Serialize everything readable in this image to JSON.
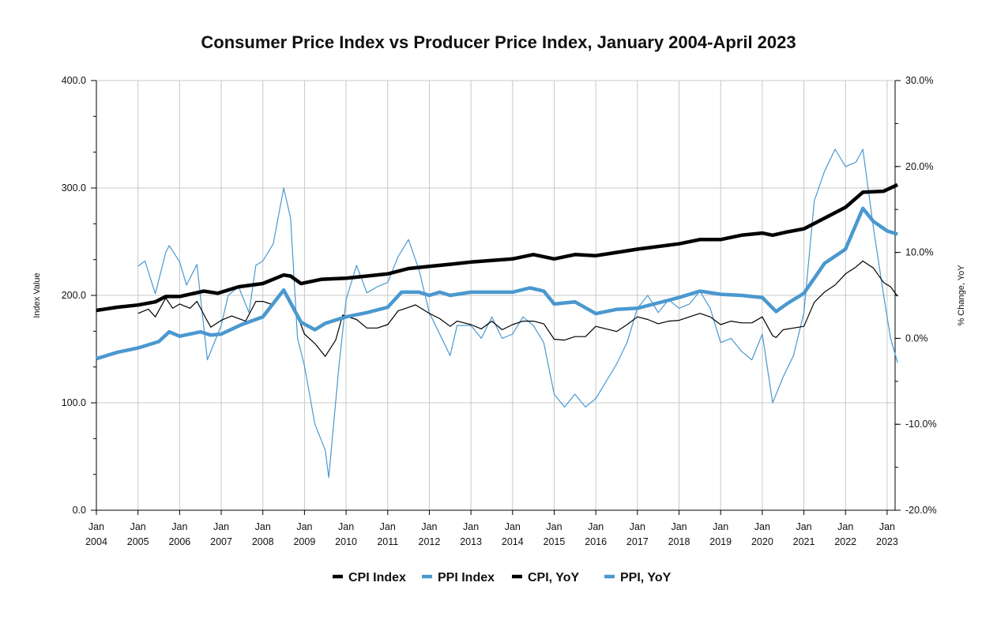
{
  "chart_data": {
    "type": "line",
    "title": "Consumer Price Index vs Producer Price Index, January 2004-April 2023",
    "ylabel": "Index Value",
    "y2label": "% Change, YoY",
    "ylim": [
      0,
      400
    ],
    "y2lim": [
      -20,
      30
    ],
    "yticks": [
      "0.0",
      "100.0",
      "200.0",
      "300.0",
      "400.0"
    ],
    "y2ticks": [
      "-20.0%",
      "-10.0%",
      "0.0%",
      "10.0%",
      "20.0%",
      "30.0%"
    ],
    "xticks": [
      [
        "Jan",
        "2004"
      ],
      [
        "Jan",
        "2005"
      ],
      [
        "Jan",
        "2006"
      ],
      [
        "Jan",
        "2007"
      ],
      [
        "Jan",
        "2008"
      ],
      [
        "Jan",
        "2009"
      ],
      [
        "Jan",
        "2010"
      ],
      [
        "Jan",
        "2011"
      ],
      [
        "Jan",
        "2012"
      ],
      [
        "Jan",
        "2013"
      ],
      [
        "Jan",
        "2014"
      ],
      [
        "Jan",
        "2015"
      ],
      [
        "Jan",
        "2016"
      ],
      [
        "Jan",
        "2017"
      ],
      [
        "Jan",
        "2018"
      ],
      [
        "Jan",
        "2019"
      ],
      [
        "Jan",
        "2020"
      ],
      [
        "Jan",
        "2021"
      ],
      [
        "Jan",
        "2022"
      ],
      [
        "Jan",
        "2023"
      ]
    ],
    "grid": true,
    "legend_position": "bottom",
    "series": [
      {
        "name": "CPI Index",
        "axis": "left",
        "color": "#000000",
        "style": "thick",
        "points": [
          [
            "2004-01",
            186
          ],
          [
            "2004-07",
            189
          ],
          [
            "2005-01",
            191
          ],
          [
            "2005-06",
            194
          ],
          [
            "2005-09",
            199
          ],
          [
            "2006-01",
            199
          ],
          [
            "2006-08",
            204
          ],
          [
            "2006-12",
            202
          ],
          [
            "2007-06",
            208
          ],
          [
            "2008-01",
            211
          ],
          [
            "2008-07",
            219
          ],
          [
            "2008-09",
            218
          ],
          [
            "2008-12",
            211
          ],
          [
            "2009-06",
            215
          ],
          [
            "2010-01",
            216
          ],
          [
            "2011-01",
            220
          ],
          [
            "2011-07",
            225
          ],
          [
            "2012-01",
            227
          ],
          [
            "2012-07",
            229
          ],
          [
            "2013-01",
            231
          ],
          [
            "2014-01",
            234
          ],
          [
            "2014-07",
            238
          ],
          [
            "2015-01",
            234
          ],
          [
            "2015-07",
            238
          ],
          [
            "2016-01",
            237
          ],
          [
            "2016-07",
            240
          ],
          [
            "2017-01",
            243
          ],
          [
            "2018-01",
            248
          ],
          [
            "2018-07",
            252
          ],
          [
            "2019-01",
            252
          ],
          [
            "2019-07",
            256
          ],
          [
            "2020-01",
            258
          ],
          [
            "2020-04",
            256
          ],
          [
            "2020-08",
            259
          ],
          [
            "2021-01",
            262
          ],
          [
            "2021-07",
            272
          ],
          [
            "2022-01",
            282
          ],
          [
            "2022-06",
            296
          ],
          [
            "2022-12",
            297
          ],
          [
            "2023-04",
            303
          ]
        ]
      },
      {
        "name": "PPI Index",
        "axis": "left",
        "color": "#4a98cf",
        "style": "thick",
        "points": [
          [
            "2004-01",
            141
          ],
          [
            "2004-07",
            147
          ],
          [
            "2005-01",
            151
          ],
          [
            "2005-07",
            157
          ],
          [
            "2005-10",
            166
          ],
          [
            "2006-01",
            162
          ],
          [
            "2006-07",
            166
          ],
          [
            "2006-10",
            163
          ],
          [
            "2007-01",
            164
          ],
          [
            "2007-07",
            173
          ],
          [
            "2008-01",
            180
          ],
          [
            "2008-07",
            205
          ],
          [
            "2008-12",
            175
          ],
          [
            "2009-04",
            168
          ],
          [
            "2009-07",
            174
          ],
          [
            "2010-01",
            180
          ],
          [
            "2010-07",
            184
          ],
          [
            "2011-01",
            189
          ],
          [
            "2011-05",
            203
          ],
          [
            "2011-10",
            203
          ],
          [
            "2012-01",
            200
          ],
          [
            "2012-04",
            203
          ],
          [
            "2012-07",
            200
          ],
          [
            "2013-01",
            203
          ],
          [
            "2013-07",
            203
          ],
          [
            "2014-01",
            203
          ],
          [
            "2014-06",
            207
          ],
          [
            "2014-10",
            204
          ],
          [
            "2015-01",
            192
          ],
          [
            "2015-07",
            194
          ],
          [
            "2016-01",
            183
          ],
          [
            "2016-07",
            187
          ],
          [
            "2017-01",
            188
          ],
          [
            "2017-07",
            193
          ],
          [
            "2018-01",
            198
          ],
          [
            "2018-07",
            204
          ],
          [
            "2019-01",
            201
          ],
          [
            "2019-07",
            200
          ],
          [
            "2020-01",
            198
          ],
          [
            "2020-05",
            185
          ],
          [
            "2020-08",
            192
          ],
          [
            "2021-01",
            202
          ],
          [
            "2021-07",
            230
          ],
          [
            "2022-01",
            243
          ],
          [
            "2022-06",
            281
          ],
          [
            "2022-09",
            269
          ],
          [
            "2023-01",
            260
          ],
          [
            "2023-04",
            257
          ]
        ]
      },
      {
        "name": "CPI, YoY",
        "axis": "right",
        "color": "#000000",
        "style": "thin",
        "points": [
          [
            "2005-01",
            2.9
          ],
          [
            "2005-04",
            3.4
          ],
          [
            "2005-06",
            2.5
          ],
          [
            "2005-09",
            4.7
          ],
          [
            "2005-11",
            3.5
          ],
          [
            "2006-01",
            4.0
          ],
          [
            "2006-04",
            3.5
          ],
          [
            "2006-06",
            4.3
          ],
          [
            "2006-09",
            2.0
          ],
          [
            "2006-10",
            1.3
          ],
          [
            "2007-01",
            2.1
          ],
          [
            "2007-04",
            2.6
          ],
          [
            "2007-08",
            2.0
          ],
          [
            "2007-11",
            4.3
          ],
          [
            "2008-01",
            4.3
          ],
          [
            "2008-04",
            3.9
          ],
          [
            "2008-07",
            5.6
          ],
          [
            "2008-10",
            3.7
          ],
          [
            "2009-01",
            0.5
          ],
          [
            "2009-04",
            -0.6
          ],
          [
            "2009-07",
            -2.1
          ],
          [
            "2009-10",
            -0.2
          ],
          [
            "2009-12",
            2.7
          ],
          [
            "2010-04",
            2.2
          ],
          [
            "2010-07",
            1.2
          ],
          [
            "2010-10",
            1.2
          ],
          [
            "2011-01",
            1.6
          ],
          [
            "2011-04",
            3.2
          ],
          [
            "2011-07",
            3.6
          ],
          [
            "2011-09",
            3.9
          ],
          [
            "2012-01",
            2.9
          ],
          [
            "2012-04",
            2.3
          ],
          [
            "2012-07",
            1.4
          ],
          [
            "2012-09",
            2.0
          ],
          [
            "2013-01",
            1.6
          ],
          [
            "2013-04",
            1.1
          ],
          [
            "2013-07",
            2.0
          ],
          [
            "2013-10",
            1.0
          ],
          [
            "2014-01",
            1.6
          ],
          [
            "2014-04",
            2.0
          ],
          [
            "2014-07",
            2.0
          ],
          [
            "2014-10",
            1.7
          ],
          [
            "2015-01",
            -0.1
          ],
          [
            "2015-04",
            -0.2
          ],
          [
            "2015-07",
            0.2
          ],
          [
            "2015-10",
            0.2
          ],
          [
            "2016-01",
            1.4
          ],
          [
            "2016-04",
            1.1
          ],
          [
            "2016-07",
            0.8
          ],
          [
            "2016-10",
            1.6
          ],
          [
            "2017-01",
            2.5
          ],
          [
            "2017-04",
            2.2
          ],
          [
            "2017-07",
            1.7
          ],
          [
            "2017-10",
            2.0
          ],
          [
            "2018-01",
            2.1
          ],
          [
            "2018-04",
            2.5
          ],
          [
            "2018-07",
            2.9
          ],
          [
            "2018-10",
            2.5
          ],
          [
            "2019-01",
            1.6
          ],
          [
            "2019-04",
            2.0
          ],
          [
            "2019-07",
            1.8
          ],
          [
            "2019-10",
            1.8
          ],
          [
            "2020-01",
            2.5
          ],
          [
            "2020-04",
            0.3
          ],
          [
            "2020-05",
            0.1
          ],
          [
            "2020-07",
            1.0
          ],
          [
            "2020-10",
            1.2
          ],
          [
            "2021-01",
            1.4
          ],
          [
            "2021-04",
            4.2
          ],
          [
            "2021-07",
            5.4
          ],
          [
            "2021-10",
            6.2
          ],
          [
            "2022-01",
            7.5
          ],
          [
            "2022-04",
            8.3
          ],
          [
            "2022-06",
            9.0
          ],
          [
            "2022-09",
            8.2
          ],
          [
            "2022-12",
            6.5
          ],
          [
            "2023-02",
            6.0
          ],
          [
            "2023-04",
            4.9
          ]
        ]
      },
      {
        "name": "PPI, YoY",
        "axis": "right",
        "color": "#4a98cf",
        "style": "thin",
        "points": [
          [
            "2005-01",
            8.4
          ],
          [
            "2005-03",
            9.0
          ],
          [
            "2005-06",
            5.2
          ],
          [
            "2005-09",
            10.0
          ],
          [
            "2005-10",
            10.8
          ],
          [
            "2006-01",
            8.9
          ],
          [
            "2006-03",
            6.2
          ],
          [
            "2006-06",
            8.6
          ],
          [
            "2006-09",
            -2.5
          ],
          [
            "2007-01",
            1.5
          ],
          [
            "2007-03",
            5.0
          ],
          [
            "2007-06",
            6.0
          ],
          [
            "2007-09",
            3.0
          ],
          [
            "2007-11",
            8.5
          ],
          [
            "2008-01",
            9.0
          ],
          [
            "2008-04",
            11.0
          ],
          [
            "2008-07",
            17.5
          ],
          [
            "2008-09",
            14.0
          ],
          [
            "2008-11",
            0.0
          ],
          [
            "2009-01",
            -3.2
          ],
          [
            "2009-04",
            -10.0
          ],
          [
            "2009-07",
            -13.0
          ],
          [
            "2009-08",
            -16.2
          ],
          [
            "2009-11",
            -3.0
          ],
          [
            "2010-01",
            4.5
          ],
          [
            "2010-04",
            8.5
          ],
          [
            "2010-07",
            5.3
          ],
          [
            "2010-10",
            6.0
          ],
          [
            "2011-01",
            6.5
          ],
          [
            "2011-04",
            9.5
          ],
          [
            "2011-07",
            11.5
          ],
          [
            "2011-10",
            8.0
          ],
          [
            "2012-01",
            3.0
          ],
          [
            "2012-04",
            0.5
          ],
          [
            "2012-07",
            -2.0
          ],
          [
            "2012-09",
            1.5
          ],
          [
            "2013-01",
            1.5
          ],
          [
            "2013-04",
            0.0
          ],
          [
            "2013-07",
            2.5
          ],
          [
            "2013-10",
            0.0
          ],
          [
            "2014-01",
            0.5
          ],
          [
            "2014-04",
            2.5
          ],
          [
            "2014-07",
            1.5
          ],
          [
            "2014-10",
            -0.5
          ],
          [
            "2015-01",
            -6.5
          ],
          [
            "2015-04",
            -8.0
          ],
          [
            "2015-07",
            -6.5
          ],
          [
            "2015-10",
            -8.0
          ],
          [
            "2016-01",
            -7.0
          ],
          [
            "2016-04",
            -5.0
          ],
          [
            "2016-07",
            -3.0
          ],
          [
            "2016-10",
            -0.5
          ],
          [
            "2017-01",
            3.5
          ],
          [
            "2017-04",
            5.0
          ],
          [
            "2017-07",
            3.0
          ],
          [
            "2017-10",
            4.5
          ],
          [
            "2018-01",
            3.5
          ],
          [
            "2018-04",
            4.0
          ],
          [
            "2018-07",
            5.5
          ],
          [
            "2018-10",
            3.5
          ],
          [
            "2019-01",
            -0.5
          ],
          [
            "2019-04",
            0.0
          ],
          [
            "2019-07",
            -1.5
          ],
          [
            "2019-10",
            -2.5
          ],
          [
            "2020-01",
            0.5
          ],
          [
            "2020-04",
            -7.5
          ],
          [
            "2020-07",
            -4.5
          ],
          [
            "2020-10",
            -2.0
          ],
          [
            "2021-01",
            3.0
          ],
          [
            "2021-04",
            16.0
          ],
          [
            "2021-07",
            19.5
          ],
          [
            "2021-10",
            22.0
          ],
          [
            "2022-01",
            20.0
          ],
          [
            "2022-04",
            20.5
          ],
          [
            "2022-06",
            22.0
          ],
          [
            "2022-09",
            13.0
          ],
          [
            "2022-12",
            5.0
          ],
          [
            "2023-02",
            0.0
          ],
          [
            "2023-04",
            -2.8
          ]
        ]
      }
    ]
  }
}
